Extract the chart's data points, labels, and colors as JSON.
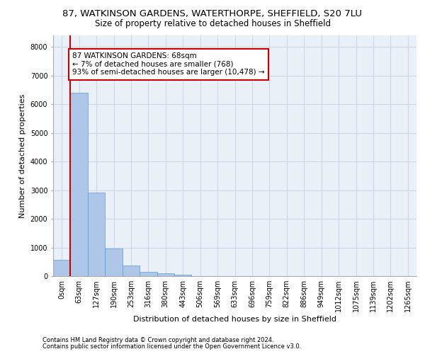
{
  "title_line1": "87, WATKINSON GARDENS, WATERTHORPE, SHEFFIELD, S20 7LU",
  "title_line2": "Size of property relative to detached houses in Sheffield",
  "xlabel": "Distribution of detached houses by size in Sheffield",
  "ylabel": "Number of detached properties",
  "footer_line1": "Contains HM Land Registry data © Crown copyright and database right 2024.",
  "footer_line2": "Contains public sector information licensed under the Open Government Licence v3.0.",
  "bar_labels": [
    "0sqm",
    "63sqm",
    "127sqm",
    "190sqm",
    "253sqm",
    "316sqm",
    "380sqm",
    "443sqm",
    "506sqm",
    "569sqm",
    "633sqm",
    "696sqm",
    "759sqm",
    "822sqm",
    "886sqm",
    "949sqm",
    "1012sqm",
    "1075sqm",
    "1139sqm",
    "1202sqm",
    "1265sqm"
  ],
  "bar_values": [
    580,
    6400,
    2920,
    970,
    360,
    155,
    90,
    55,
    0,
    0,
    0,
    0,
    0,
    0,
    0,
    0,
    0,
    0,
    0,
    0,
    0
  ],
  "bar_color": "#aec6e8",
  "bar_edge_color": "#5b9bd5",
  "annotation_text": "87 WATKINSON GARDENS: 68sqm\n← 7% of detached houses are smaller (768)\n93% of semi-detached houses are larger (10,478) →",
  "annotation_box_color": "#ffffff",
  "annotation_box_edge_color": "#cc0000",
  "vertical_line_x": 1,
  "vertical_line_color": "#cc0000",
  "ylim": [
    0,
    8400
  ],
  "yticks": [
    0,
    1000,
    2000,
    3000,
    4000,
    5000,
    6000,
    7000,
    8000
  ],
  "grid_color": "#d0d8e8",
  "background_color": "#eaf0f8",
  "title_fontsize": 9.5,
  "subtitle_fontsize": 8.5,
  "annotation_fontsize": 7.5,
  "axis_label_fontsize": 8,
  "tick_fontsize": 7,
  "footer_fontsize": 6,
  "ylabel_fontsize": 8
}
